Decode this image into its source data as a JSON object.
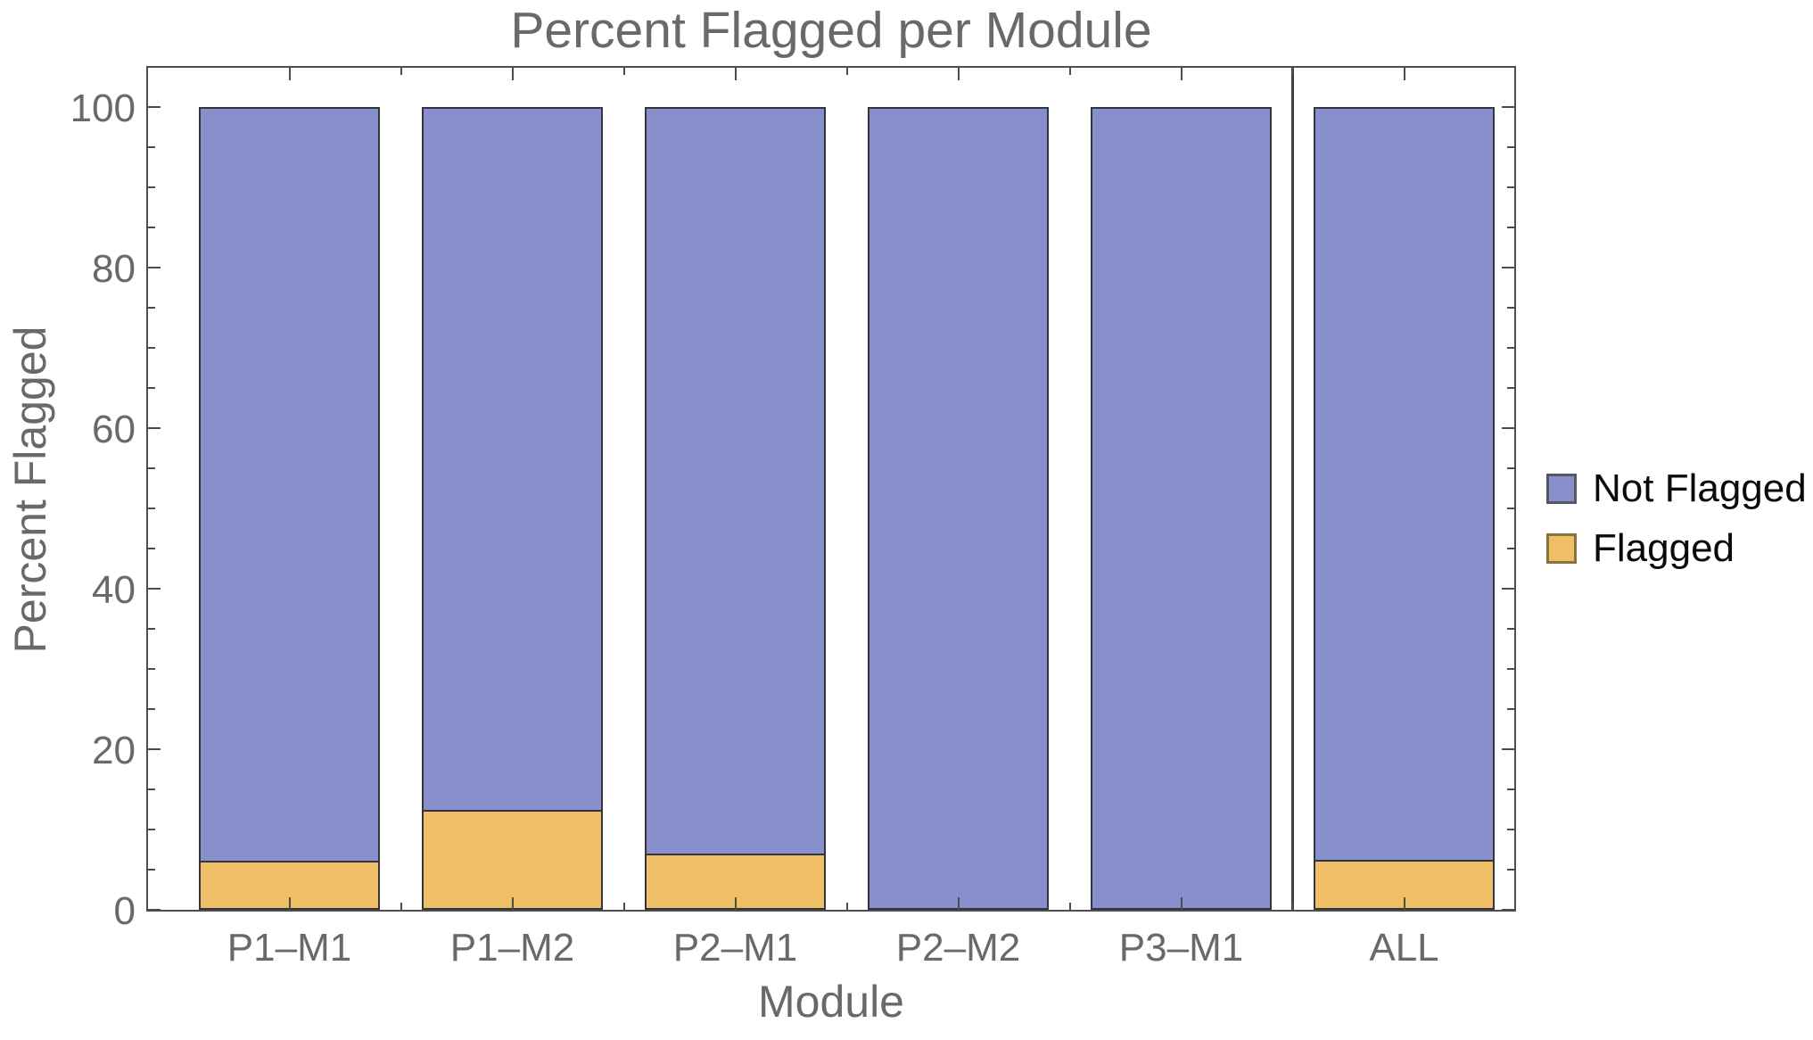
{
  "title": "Percent Flagged per Module",
  "chart_data": {
    "type": "bar",
    "stacked": true,
    "orientation": "vertical",
    "title": "Percent Flagged per Module",
    "xlabel": "Module",
    "ylabel": "Percent Flagged",
    "categories": [
      "P1–M1",
      "P1–M2",
      "P2–M1",
      "P2–M2",
      "P3–M1",
      "ALL"
    ],
    "series": [
      {
        "name": "Not Flagged",
        "color": "#8890CB",
        "values": [
          93.9,
          87.6,
          93.0,
          100.0,
          100.0,
          93.8
        ]
      },
      {
        "name": "Flagged",
        "color": "#EFBF68",
        "values": [
          6.1,
          12.4,
          7.0,
          0.0,
          0.0,
          6.2
        ]
      }
    ],
    "ylim": [
      0,
      105
    ],
    "yticks": [
      0,
      20,
      40,
      60,
      80,
      100
    ],
    "y_minor_tick_step": 5,
    "grid": false,
    "frame": true,
    "legend_position": "right-outside",
    "separator_before_category": "ALL"
  },
  "legend": {
    "items": [
      {
        "label": "Not Flagged",
        "color": "#8890CB"
      },
      {
        "label": "Flagged",
        "color": "#EFBF68"
      }
    ]
  },
  "colors": {
    "frame": "#4d4d4d",
    "bar_edge": "#34343f",
    "axis_text": "#696969",
    "title_text": "#696969",
    "legend_text": "#0a0a0a",
    "background": "#ffffff"
  }
}
